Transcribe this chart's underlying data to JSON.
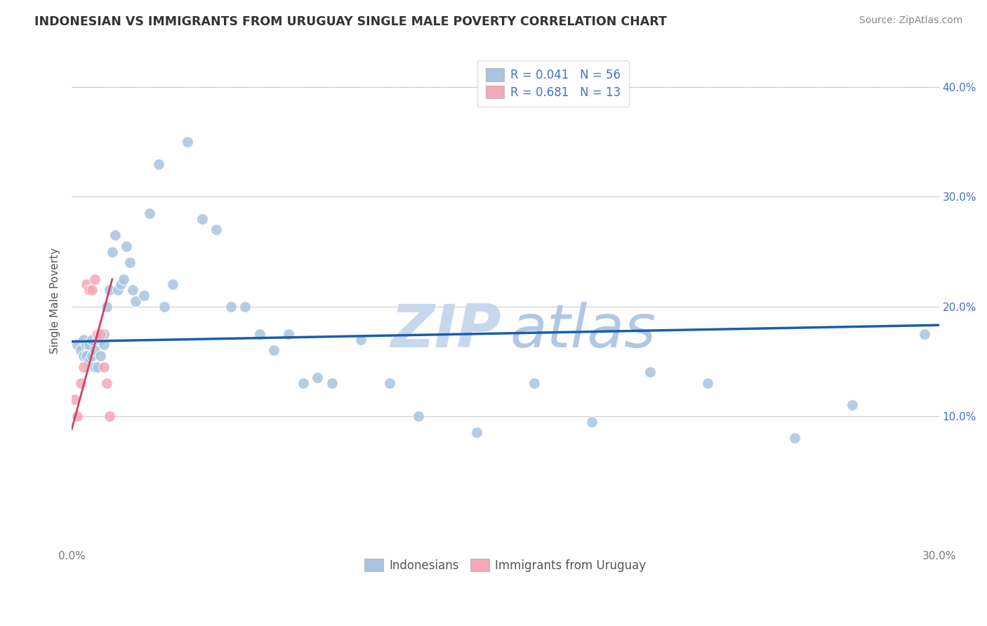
{
  "title": "INDONESIAN VS IMMIGRANTS FROM URUGUAY SINGLE MALE POVERTY CORRELATION CHART",
  "source": "Source: ZipAtlas.com",
  "ylabel": "Single Male Poverty",
  "xlim": [
    0.0,
    0.3
  ],
  "ylim": [
    -0.02,
    0.43
  ],
  "xticks": [
    0.0,
    0.05,
    0.1,
    0.15,
    0.2,
    0.25,
    0.3
  ],
  "xtick_labels": [
    "0.0%",
    "",
    "",
    "",
    "",
    "",
    "30.0%"
  ],
  "ytick_labels_right": [
    "10.0%",
    "20.0%",
    "30.0%",
    "40.0%"
  ],
  "yticks_right": [
    0.1,
    0.2,
    0.3,
    0.4
  ],
  "indonesian_R": 0.041,
  "indonesian_N": 56,
  "uruguay_R": 0.681,
  "uruguay_N": 13,
  "indonesian_color": "#a8c4e0",
  "uruguay_color": "#f4a8b8",
  "trend_blue_color": "#1a5fa8",
  "trend_pink_color": "#d44060",
  "watermark_zip_color": "#c8d8ec",
  "watermark_atlas_color": "#b0c8e4",
  "grid_color": "#cccccc",
  "background_color": "#ffffff",
  "indonesian_x": [
    0.002,
    0.003,
    0.004,
    0.004,
    0.005,
    0.005,
    0.006,
    0.006,
    0.007,
    0.007,
    0.008,
    0.008,
    0.009,
    0.009,
    0.01,
    0.01,
    0.011,
    0.011,
    0.012,
    0.013,
    0.014,
    0.015,
    0.016,
    0.017,
    0.018,
    0.019,
    0.02,
    0.021,
    0.022,
    0.025,
    0.027,
    0.03,
    0.032,
    0.035,
    0.04,
    0.045,
    0.05,
    0.055,
    0.06,
    0.065,
    0.07,
    0.075,
    0.08,
    0.085,
    0.09,
    0.1,
    0.11,
    0.12,
    0.14,
    0.16,
    0.18,
    0.2,
    0.22,
    0.25,
    0.27,
    0.295
  ],
  "indonesian_y": [
    0.165,
    0.16,
    0.155,
    0.17,
    0.155,
    0.165,
    0.15,
    0.165,
    0.155,
    0.17,
    0.145,
    0.16,
    0.145,
    0.17,
    0.155,
    0.17,
    0.175,
    0.165,
    0.2,
    0.215,
    0.25,
    0.265,
    0.215,
    0.22,
    0.225,
    0.255,
    0.24,
    0.215,
    0.205,
    0.21,
    0.285,
    0.33,
    0.2,
    0.22,
    0.35,
    0.28,
    0.27,
    0.2,
    0.2,
    0.175,
    0.16,
    0.175,
    0.13,
    0.135,
    0.13,
    0.17,
    0.13,
    0.1,
    0.085,
    0.13,
    0.095,
    0.14,
    0.13,
    0.08,
    0.11,
    0.175
  ],
  "uruguay_x": [
    0.001,
    0.002,
    0.003,
    0.004,
    0.005,
    0.006,
    0.007,
    0.008,
    0.009,
    0.01,
    0.011,
    0.012,
    0.013
  ],
  "uruguay_y": [
    0.115,
    0.1,
    0.13,
    0.145,
    0.22,
    0.215,
    0.215,
    0.225,
    0.175,
    0.175,
    0.145,
    0.13,
    0.1
  ],
  "blue_trend_x": [
    0.0,
    0.3
  ],
  "blue_trend_y": [
    0.168,
    0.183
  ],
  "pink_trend_x": [
    0.0,
    0.014
  ],
  "pink_trend_y": [
    0.088,
    0.225
  ]
}
